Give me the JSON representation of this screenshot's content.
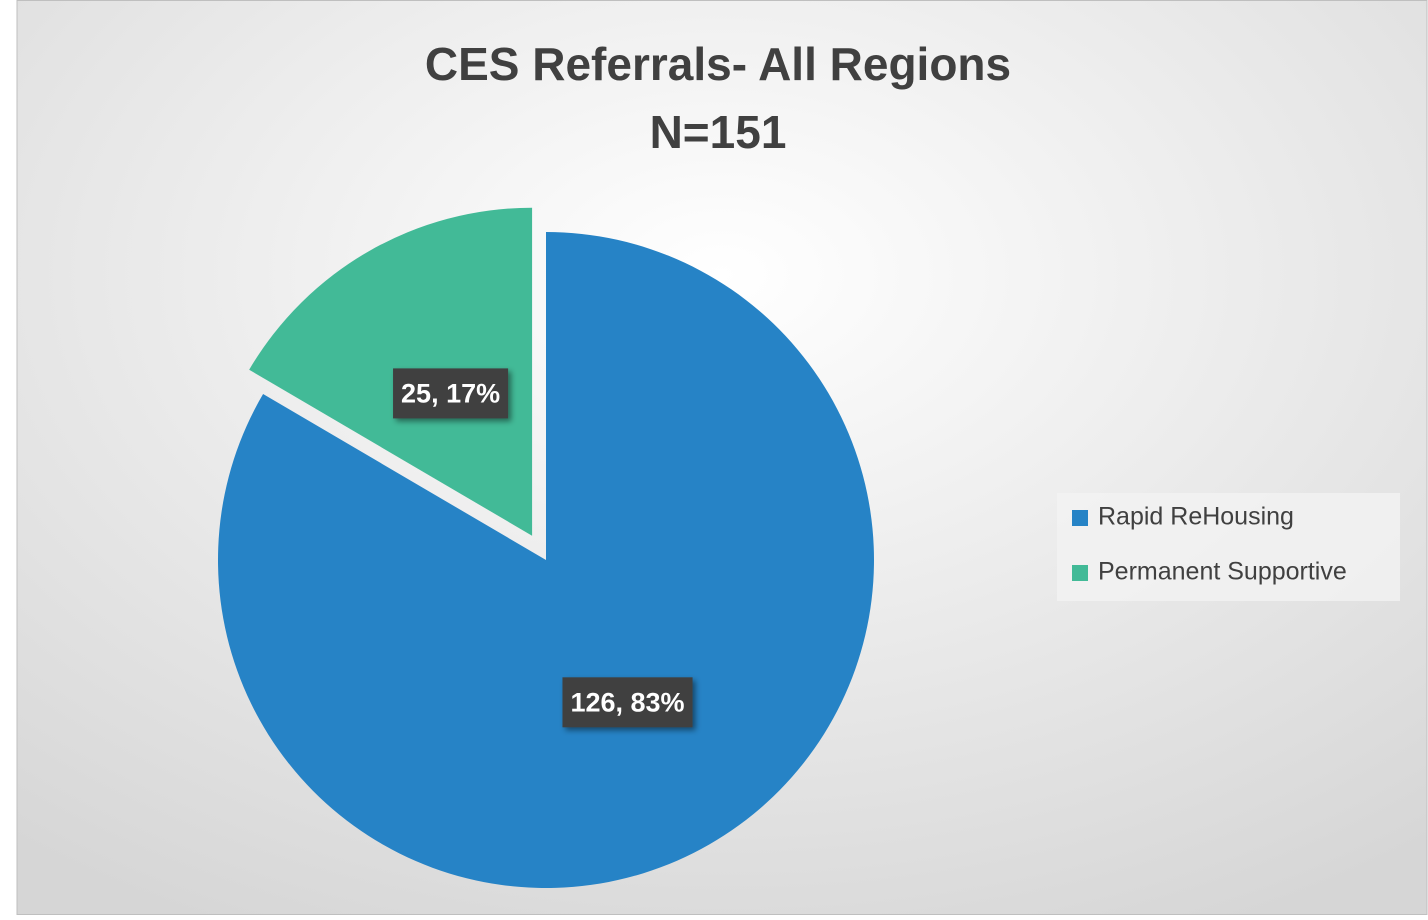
{
  "chart_data": {
    "type": "pie",
    "title": "CES Referrals- All Regions",
    "subtitle": "N=151",
    "categories": [
      "Rapid ReHousing",
      "Permanent Supportive"
    ],
    "values": [
      126,
      25
    ],
    "value_labels": [
      "126, 83%",
      "25, 17%"
    ],
    "colors": [
      "#2683c6",
      "#42ba97"
    ],
    "explode": [
      false,
      true
    ],
    "legend": "right"
  }
}
